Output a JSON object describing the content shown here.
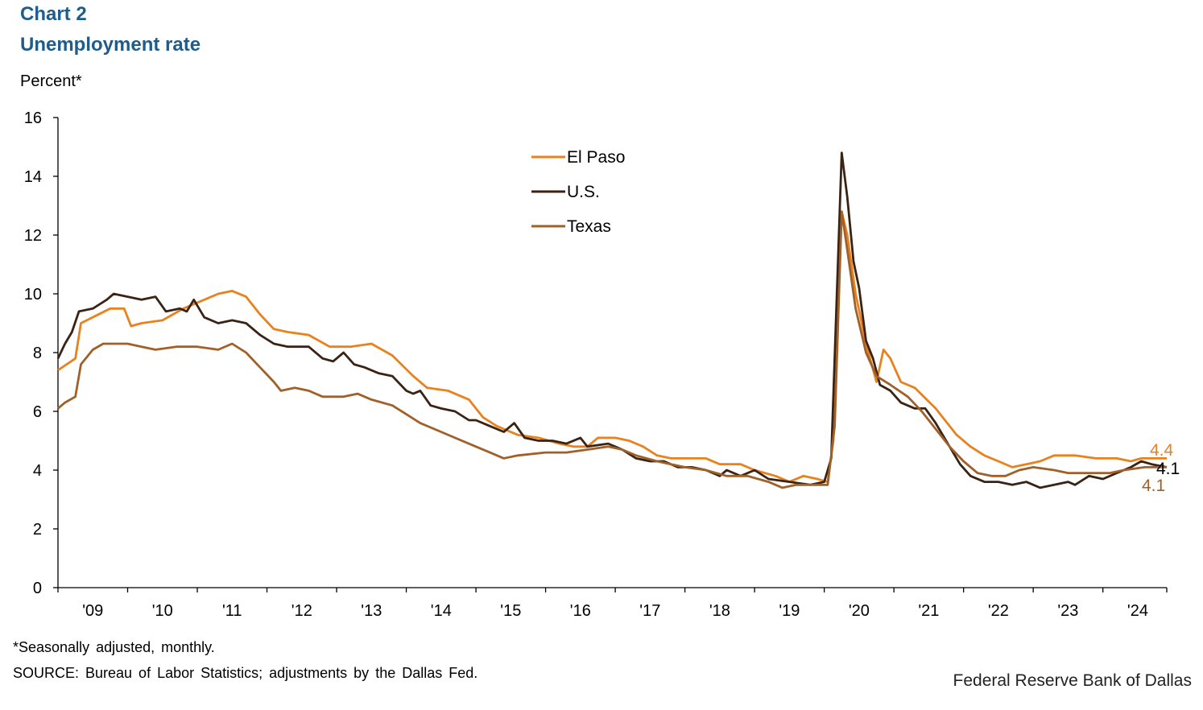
{
  "header": {
    "chart_label": "Chart 2",
    "title": "Unemployment rate"
  },
  "footer": {
    "note": "*Seasonally adjusted, monthly.",
    "source": "SOURCE: Bureau of Labor Statistics; adjustments by the Dallas Fed.",
    "brand": "Federal Reserve Bank of Dallas"
  },
  "chart_data": {
    "type": "line",
    "ylabel": "Percent*",
    "ylim": [
      0,
      16
    ],
    "yticks": [
      0,
      2,
      4,
      6,
      8,
      10,
      12,
      14,
      16
    ],
    "xlim": [
      2009.0,
      2024.917
    ],
    "x_ticks": [
      {
        "label": "'09",
        "year": 2009
      },
      {
        "label": "'10",
        "year": 2010
      },
      {
        "label": "'11",
        "year": 2011
      },
      {
        "label": "'12",
        "year": 2012
      },
      {
        "label": "'13",
        "year": 2013
      },
      {
        "label": "'14",
        "year": 2014
      },
      {
        "label": "'15",
        "year": 2015
      },
      {
        "label": "'16",
        "year": 2016
      },
      {
        "label": "'17",
        "year": 2017
      },
      {
        "label": "'18",
        "year": 2018
      },
      {
        "label": "'19",
        "year": 2019
      },
      {
        "label": "'20",
        "year": 2020
      },
      {
        "label": "'21",
        "year": 2021
      },
      {
        "label": "'22",
        "year": 2022
      },
      {
        "label": "'23",
        "year": 2023
      },
      {
        "label": "'24",
        "year": 2024
      }
    ],
    "grid": false,
    "legend": "top-center",
    "series": [
      {
        "name": "El Paso",
        "color": "#e8821e",
        "end_label": "4.4",
        "points": [
          [
            2009.0,
            7.4
          ],
          [
            2009.25,
            7.8
          ],
          [
            2009.33,
            9.0
          ],
          [
            2009.75,
            9.5
          ],
          [
            2009.95,
            9.5
          ],
          [
            2010.05,
            8.9
          ],
          [
            2010.2,
            9.0
          ],
          [
            2010.5,
            9.1
          ],
          [
            2010.8,
            9.5
          ],
          [
            2011.0,
            9.7
          ],
          [
            2011.3,
            10.0
          ],
          [
            2011.5,
            10.1
          ],
          [
            2011.7,
            9.9
          ],
          [
            2011.9,
            9.3
          ],
          [
            2012.1,
            8.8
          ],
          [
            2012.3,
            8.7
          ],
          [
            2012.6,
            8.6
          ],
          [
            2012.9,
            8.2
          ],
          [
            2013.2,
            8.2
          ],
          [
            2013.5,
            8.3
          ],
          [
            2013.8,
            7.9
          ],
          [
            2014.1,
            7.2
          ],
          [
            2014.3,
            6.8
          ],
          [
            2014.6,
            6.7
          ],
          [
            2014.9,
            6.4
          ],
          [
            2015.1,
            5.8
          ],
          [
            2015.3,
            5.5
          ],
          [
            2015.6,
            5.2
          ],
          [
            2015.9,
            5.1
          ],
          [
            2016.2,
            4.9
          ],
          [
            2016.4,
            4.8
          ],
          [
            2016.6,
            4.8
          ],
          [
            2016.75,
            5.1
          ],
          [
            2017.0,
            5.1
          ],
          [
            2017.2,
            5.0
          ],
          [
            2017.4,
            4.8
          ],
          [
            2017.6,
            4.5
          ],
          [
            2017.8,
            4.4
          ],
          [
            2018.0,
            4.4
          ],
          [
            2018.3,
            4.4
          ],
          [
            2018.5,
            4.2
          ],
          [
            2018.8,
            4.2
          ],
          [
            2019.0,
            4.0
          ],
          [
            2019.3,
            3.8
          ],
          [
            2019.5,
            3.6
          ],
          [
            2019.7,
            3.8
          ],
          [
            2019.9,
            3.7
          ],
          [
            2020.05,
            3.6
          ],
          [
            2020.13,
            5.0
          ],
          [
            2020.25,
            12.8
          ],
          [
            2020.33,
            12.0
          ],
          [
            2020.45,
            10.0
          ],
          [
            2020.6,
            8.3
          ],
          [
            2020.75,
            7.0
          ],
          [
            2020.85,
            8.1
          ],
          [
            2020.95,
            7.8
          ],
          [
            2021.1,
            7.0
          ],
          [
            2021.3,
            6.8
          ],
          [
            2021.6,
            6.1
          ],
          [
            2021.9,
            5.2
          ],
          [
            2022.1,
            4.8
          ],
          [
            2022.3,
            4.5
          ],
          [
            2022.5,
            4.3
          ],
          [
            2022.7,
            4.1
          ],
          [
            2022.9,
            4.2
          ],
          [
            2023.1,
            4.3
          ],
          [
            2023.3,
            4.5
          ],
          [
            2023.6,
            4.5
          ],
          [
            2023.9,
            4.4
          ],
          [
            2024.2,
            4.4
          ],
          [
            2024.4,
            4.3
          ],
          [
            2024.55,
            4.4
          ],
          [
            2024.917,
            4.4
          ]
        ]
      },
      {
        "name": "U.S.",
        "color": "#3b2314",
        "end_label": "4.1",
        "points": [
          [
            2009.0,
            7.8
          ],
          [
            2009.1,
            8.3
          ],
          [
            2009.2,
            8.7
          ],
          [
            2009.3,
            9.4
          ],
          [
            2009.5,
            9.5
          ],
          [
            2009.7,
            9.8
          ],
          [
            2009.8,
            10.0
          ],
          [
            2010.0,
            9.9
          ],
          [
            2010.2,
            9.8
          ],
          [
            2010.4,
            9.9
          ],
          [
            2010.55,
            9.4
          ],
          [
            2010.75,
            9.5
          ],
          [
            2010.85,
            9.4
          ],
          [
            2010.95,
            9.8
          ],
          [
            2011.1,
            9.2
          ],
          [
            2011.3,
            9.0
          ],
          [
            2011.5,
            9.1
          ],
          [
            2011.7,
            9.0
          ],
          [
            2011.9,
            8.6
          ],
          [
            2012.1,
            8.3
          ],
          [
            2012.3,
            8.2
          ],
          [
            2012.6,
            8.2
          ],
          [
            2012.8,
            7.8
          ],
          [
            2012.95,
            7.7
          ],
          [
            2013.1,
            8.0
          ],
          [
            2013.25,
            7.6
          ],
          [
            2013.4,
            7.5
          ],
          [
            2013.6,
            7.3
          ],
          [
            2013.8,
            7.2
          ],
          [
            2014.0,
            6.7
          ],
          [
            2014.1,
            6.6
          ],
          [
            2014.2,
            6.7
          ],
          [
            2014.35,
            6.2
          ],
          [
            2014.5,
            6.1
          ],
          [
            2014.7,
            6.0
          ],
          [
            2014.9,
            5.7
          ],
          [
            2015.0,
            5.7
          ],
          [
            2015.2,
            5.5
          ],
          [
            2015.4,
            5.3
          ],
          [
            2015.55,
            5.6
          ],
          [
            2015.7,
            5.1
          ],
          [
            2015.9,
            5.0
          ],
          [
            2016.1,
            5.0
          ],
          [
            2016.3,
            4.9
          ],
          [
            2016.5,
            5.1
          ],
          [
            2016.6,
            4.8
          ],
          [
            2016.9,
            4.9
          ],
          [
            2017.1,
            4.7
          ],
          [
            2017.3,
            4.4
          ],
          [
            2017.5,
            4.3
          ],
          [
            2017.7,
            4.3
          ],
          [
            2017.9,
            4.1
          ],
          [
            2018.1,
            4.1
          ],
          [
            2018.3,
            4.0
          ],
          [
            2018.5,
            3.8
          ],
          [
            2018.6,
            4.0
          ],
          [
            2018.8,
            3.8
          ],
          [
            2019.0,
            4.0
          ],
          [
            2019.2,
            3.7
          ],
          [
            2019.5,
            3.6
          ],
          [
            2019.8,
            3.5
          ],
          [
            2020.0,
            3.6
          ],
          [
            2020.1,
            4.4
          ],
          [
            2020.25,
            14.8
          ],
          [
            2020.33,
            13.3
          ],
          [
            2020.42,
            11.1
          ],
          [
            2020.5,
            10.2
          ],
          [
            2020.6,
            8.4
          ],
          [
            2020.7,
            7.8
          ],
          [
            2020.8,
            6.9
          ],
          [
            2020.95,
            6.7
          ],
          [
            2021.1,
            6.3
          ],
          [
            2021.3,
            6.1
          ],
          [
            2021.45,
            6.1
          ],
          [
            2021.6,
            5.6
          ],
          [
            2021.8,
            4.8
          ],
          [
            2021.95,
            4.2
          ],
          [
            2022.1,
            3.8
          ],
          [
            2022.3,
            3.6
          ],
          [
            2022.5,
            3.6
          ],
          [
            2022.7,
            3.5
          ],
          [
            2022.9,
            3.6
          ],
          [
            2023.1,
            3.4
          ],
          [
            2023.3,
            3.5
          ],
          [
            2023.5,
            3.6
          ],
          [
            2023.6,
            3.5
          ],
          [
            2023.8,
            3.8
          ],
          [
            2024.0,
            3.7
          ],
          [
            2024.2,
            3.9
          ],
          [
            2024.4,
            4.1
          ],
          [
            2024.55,
            4.3
          ],
          [
            2024.7,
            4.2
          ],
          [
            2024.917,
            4.1
          ]
        ]
      },
      {
        "name": "Texas",
        "color": "#a0602a",
        "end_label": "4.1",
        "points": [
          [
            2009.0,
            6.1
          ],
          [
            2009.1,
            6.3
          ],
          [
            2009.25,
            6.5
          ],
          [
            2009.33,
            7.6
          ],
          [
            2009.5,
            8.1
          ],
          [
            2009.65,
            8.3
          ],
          [
            2010.0,
            8.3
          ],
          [
            2010.2,
            8.2
          ],
          [
            2010.4,
            8.1
          ],
          [
            2010.7,
            8.2
          ],
          [
            2011.0,
            8.2
          ],
          [
            2011.3,
            8.1
          ],
          [
            2011.5,
            8.3
          ],
          [
            2011.7,
            8.0
          ],
          [
            2011.9,
            7.5
          ],
          [
            2012.1,
            7.0
          ],
          [
            2012.2,
            6.7
          ],
          [
            2012.4,
            6.8
          ],
          [
            2012.6,
            6.7
          ],
          [
            2012.8,
            6.5
          ],
          [
            2013.1,
            6.5
          ],
          [
            2013.3,
            6.6
          ],
          [
            2013.5,
            6.4
          ],
          [
            2013.8,
            6.2
          ],
          [
            2014.0,
            5.9
          ],
          [
            2014.2,
            5.6
          ],
          [
            2014.5,
            5.3
          ],
          [
            2014.7,
            5.1
          ],
          [
            2015.0,
            4.8
          ],
          [
            2015.2,
            4.6
          ],
          [
            2015.4,
            4.4
          ],
          [
            2015.6,
            4.5
          ],
          [
            2016.0,
            4.6
          ],
          [
            2016.3,
            4.6
          ],
          [
            2016.6,
            4.7
          ],
          [
            2016.9,
            4.8
          ],
          [
            2017.1,
            4.7
          ],
          [
            2017.3,
            4.5
          ],
          [
            2017.6,
            4.3
          ],
          [
            2017.8,
            4.2
          ],
          [
            2018.0,
            4.1
          ],
          [
            2018.3,
            4.0
          ],
          [
            2018.6,
            3.8
          ],
          [
            2018.9,
            3.8
          ],
          [
            2019.2,
            3.6
          ],
          [
            2019.4,
            3.4
          ],
          [
            2019.6,
            3.5
          ],
          [
            2020.05,
            3.5
          ],
          [
            2020.15,
            5.5
          ],
          [
            2020.25,
            12.8
          ],
          [
            2020.33,
            11.5
          ],
          [
            2020.45,
            9.5
          ],
          [
            2020.6,
            8.0
          ],
          [
            2020.75,
            7.2
          ],
          [
            2020.95,
            6.9
          ],
          [
            2021.2,
            6.5
          ],
          [
            2021.4,
            6.0
          ],
          [
            2021.6,
            5.4
          ],
          [
            2021.8,
            4.8
          ],
          [
            2022.0,
            4.3
          ],
          [
            2022.2,
            3.9
          ],
          [
            2022.4,
            3.8
          ],
          [
            2022.6,
            3.8
          ],
          [
            2022.8,
            4.0
          ],
          [
            2023.0,
            4.1
          ],
          [
            2023.3,
            4.0
          ],
          [
            2023.5,
            3.9
          ],
          [
            2023.8,
            3.9
          ],
          [
            2024.1,
            3.9
          ],
          [
            2024.3,
            4.0
          ],
          [
            2024.6,
            4.1
          ],
          [
            2024.917,
            4.1
          ]
        ]
      }
    ]
  }
}
